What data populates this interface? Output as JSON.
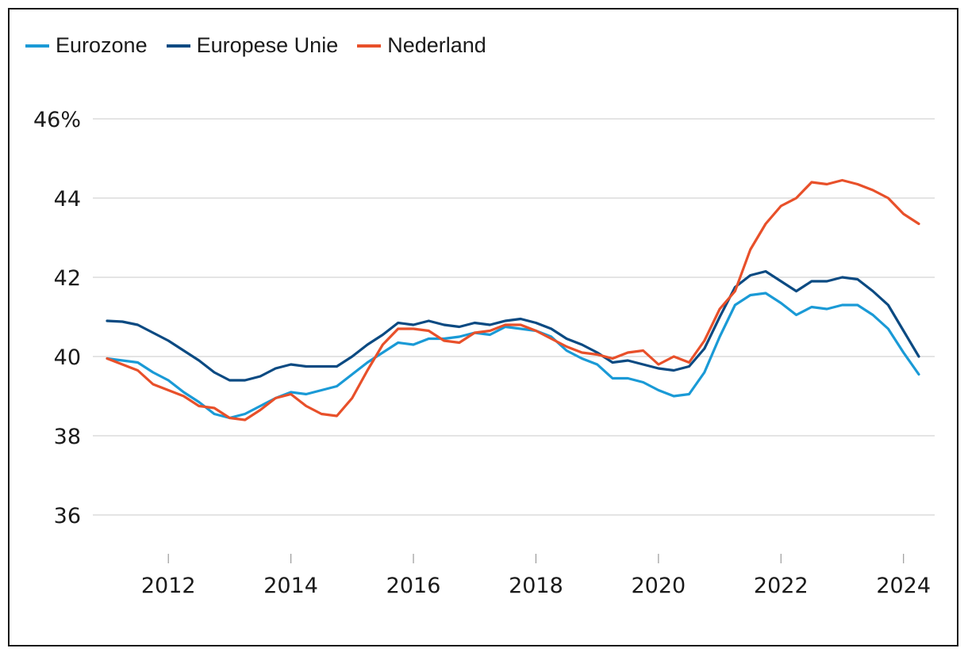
{
  "chart_data": {
    "type": "line",
    "title": "",
    "xlabel": "",
    "ylabel": "",
    "ylim": [
      35,
      46.8
    ],
    "xlim": [
      2011.0,
      2024.5
    ],
    "y_ticks": [
      {
        "value": 46,
        "label": "46%"
      },
      {
        "value": 44,
        "label": "44"
      },
      {
        "value": 42,
        "label": "42"
      },
      {
        "value": 40,
        "label": "40"
      },
      {
        "value": 38,
        "label": "38"
      },
      {
        "value": 36,
        "label": "36"
      }
    ],
    "x_ticks": [
      {
        "value": 2012,
        "label": "2012"
      },
      {
        "value": 2014,
        "label": "2014"
      },
      {
        "value": 2016,
        "label": "2016"
      },
      {
        "value": 2018,
        "label": "2018"
      },
      {
        "value": 2020,
        "label": "2020"
      },
      {
        "value": 2022,
        "label": "2022"
      },
      {
        "value": 2024,
        "label": "2024"
      }
    ],
    "grid": true,
    "legend_position": "top-left",
    "x": [
      2011.0,
      2011.25,
      2011.5,
      2011.75,
      2012.0,
      2012.25,
      2012.5,
      2012.75,
      2013.0,
      2013.25,
      2013.5,
      2013.75,
      2014.0,
      2014.25,
      2014.5,
      2014.75,
      2015.0,
      2015.25,
      2015.5,
      2015.75,
      2016.0,
      2016.25,
      2016.5,
      2016.75,
      2017.0,
      2017.25,
      2017.5,
      2017.75,
      2018.0,
      2018.25,
      2018.5,
      2018.75,
      2019.0,
      2019.25,
      2019.5,
      2019.75,
      2020.0,
      2020.25,
      2020.5,
      2020.75,
      2021.0,
      2021.25,
      2021.5,
      2021.75,
      2022.0,
      2022.25,
      2022.5,
      2022.75,
      2023.0,
      2023.25,
      2023.5,
      2023.75,
      2024.0,
      2024.25
    ],
    "series": [
      {
        "name": "Eurozone",
        "color": "#1a9ad6",
        "values": [
          39.95,
          39.9,
          39.85,
          39.6,
          39.4,
          39.1,
          38.85,
          38.55,
          38.45,
          38.55,
          38.75,
          38.95,
          39.1,
          39.05,
          39.15,
          39.25,
          39.55,
          39.85,
          40.1,
          40.35,
          40.3,
          40.45,
          40.45,
          40.5,
          40.6,
          40.55,
          40.75,
          40.7,
          40.65,
          40.5,
          40.15,
          39.95,
          39.8,
          39.45,
          39.45,
          39.35,
          39.15,
          39.0,
          39.05,
          39.6,
          40.5,
          41.3,
          41.55,
          41.6,
          41.35,
          41.05,
          41.25,
          41.2,
          41.3,
          41.3,
          41.05,
          40.7,
          40.1,
          39.55
        ]
      },
      {
        "name": "Europese Unie",
        "color": "#0b4a82",
        "values": [
          40.9,
          40.88,
          40.8,
          40.6,
          40.4,
          40.15,
          39.9,
          39.6,
          39.4,
          39.4,
          39.5,
          39.7,
          39.8,
          39.75,
          39.75,
          39.75,
          40.0,
          40.3,
          40.55,
          40.85,
          40.8,
          40.9,
          40.8,
          40.75,
          40.85,
          40.8,
          40.9,
          40.95,
          40.85,
          40.7,
          40.45,
          40.3,
          40.1,
          39.85,
          39.9,
          39.8,
          39.7,
          39.65,
          39.75,
          40.2,
          41.0,
          41.75,
          42.05,
          42.15,
          41.9,
          41.65,
          41.9,
          41.9,
          42.0,
          41.95,
          41.65,
          41.3,
          40.65,
          40.0
        ]
      },
      {
        "name": "Nederland",
        "color": "#e8502a",
        "values": [
          39.95,
          39.8,
          39.65,
          39.3,
          39.15,
          39.0,
          38.75,
          38.7,
          38.45,
          38.4,
          38.65,
          38.95,
          39.05,
          38.75,
          38.55,
          38.5,
          38.95,
          39.65,
          40.3,
          40.7,
          40.7,
          40.65,
          40.4,
          40.35,
          40.6,
          40.65,
          40.8,
          40.8,
          40.65,
          40.45,
          40.25,
          40.1,
          40.05,
          39.95,
          40.1,
          40.15,
          39.8,
          40.0,
          39.85,
          40.4,
          41.2,
          41.65,
          42.7,
          43.35,
          43.8,
          44.0,
          44.4,
          44.35,
          44.45,
          44.35,
          44.2,
          44.0,
          43.6,
          43.35
        ]
      }
    ]
  }
}
